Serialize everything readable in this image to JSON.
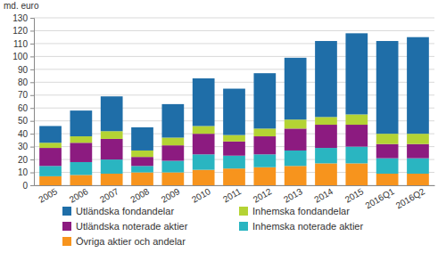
{
  "chart_data": {
    "type": "bar",
    "stacked": true,
    "grid": true,
    "legend": "bottom",
    "y_label": "md. euro",
    "categories": [
      "2005",
      "2006",
      "2007",
      "2008",
      "2009",
      "2010",
      "2011",
      "2012",
      "2013",
      "2014",
      "2015",
      "2016Q1",
      "2016Q2"
    ],
    "ylim": [
      0,
      130
    ],
    "yticks": [
      0,
      10,
      20,
      30,
      40,
      50,
      60,
      70,
      80,
      90,
      100,
      110,
      120,
      130
    ],
    "series": [
      {
        "name": "Övriga aktier och andelar",
        "color": "#f7941d",
        "values": [
          7,
          8,
          9,
          10,
          10,
          12,
          13,
          14,
          15,
          17,
          17,
          9,
          9
        ]
      },
      {
        "name": "Inhemska noterade aktier",
        "color": "#2ab5c1",
        "values": [
          8,
          10,
          11,
          5,
          9,
          12,
          10,
          10,
          12,
          12,
          13,
          12,
          12
        ]
      },
      {
        "name": "Utländska noterade aktier",
        "color": "#8c1b80",
        "values": [
          14,
          15,
          16,
          7,
          12,
          16,
          11,
          14,
          17,
          18,
          17,
          11,
          11
        ]
      },
      {
        "name": "Inhemska fondandelar",
        "color": "#b4d334",
        "values": [
          4,
          5,
          6,
          5,
          6,
          6,
          5,
          6,
          7,
          6,
          8,
          8,
          8
        ]
      },
      {
        "name": "Utländska fondandelar",
        "color": "#1f6ea8",
        "values": [
          13,
          20,
          27,
          18,
          26,
          37,
          36,
          43,
          48,
          59,
          63,
          72,
          75
        ]
      }
    ]
  }
}
